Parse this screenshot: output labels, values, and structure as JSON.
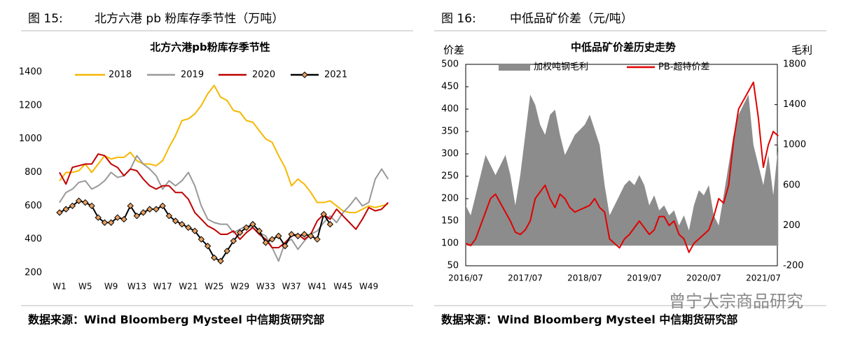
{
  "chart_data": [
    {
      "type": "line",
      "figure_label": "图 15:",
      "caption": "北方六港 pb 粉库存季节性（万吨）",
      "title": "北方六港pb粉库存季节性",
      "source": "数据来源：Wind Bloomberg Mysteel 中信期货研究部",
      "categories": [
        "W1",
        null,
        null,
        null,
        "W5",
        null,
        null,
        null,
        "W9",
        null,
        null,
        null,
        "W13",
        null,
        null,
        null,
        "W17",
        null,
        null,
        null,
        "W21",
        null,
        null,
        null,
        "W25",
        null,
        null,
        null,
        "W29",
        null,
        null,
        null,
        "W33",
        null,
        null,
        null,
        "W37",
        null,
        null,
        null,
        "W41",
        null,
        null,
        null,
        "W45",
        null,
        null,
        null,
        "W49",
        null,
        null,
        null
      ],
      "ylim": [
        200,
        1400
      ],
      "yticks": [
        200,
        400,
        600,
        800,
        1000,
        1200,
        1400
      ],
      "series": [
        {
          "name": "2018",
          "color": "#f5b800",
          "values": [
            750,
            800,
            800,
            810,
            850,
            800,
            850,
            900,
            880,
            890,
            890,
            920,
            870,
            850,
            850,
            840,
            870,
            950,
            1020,
            1110,
            1120,
            1150,
            1200,
            1270,
            1320,
            1250,
            1230,
            1170,
            1160,
            1110,
            1100,
            1050,
            1000,
            980,
            900,
            830,
            720,
            760,
            730,
            680,
            620,
            620,
            630,
            600,
            570,
            560,
            560,
            580,
            600,
            590,
            600,
            610
          ]
        },
        {
          "name": "2019",
          "color": "#999999",
          "values": [
            620,
            680,
            700,
            740,
            750,
            700,
            720,
            750,
            800,
            770,
            780,
            820,
            900,
            850,
            820,
            780,
            700,
            750,
            720,
            750,
            800,
            720,
            600,
            520,
            500,
            490,
            490,
            440,
            460,
            480,
            470,
            440,
            420,
            350,
            270,
            380,
            400,
            340,
            390,
            430,
            450,
            500,
            540,
            500,
            560,
            600,
            650,
            600,
            620,
            760,
            820,
            760
          ]
        },
        {
          "name": "2020",
          "color": "#c00000",
          "values": [
            800,
            730,
            830,
            840,
            850,
            850,
            910,
            900,
            850,
            830,
            780,
            820,
            810,
            760,
            720,
            700,
            720,
            720,
            680,
            680,
            640,
            560,
            520,
            480,
            460,
            430,
            430,
            450,
            400,
            440,
            470,
            430,
            400,
            350,
            350,
            380,
            420,
            430,
            400,
            430,
            510,
            550,
            520,
            580,
            540,
            500,
            460,
            520,
            590,
            570,
            580,
            620
          ]
        },
        {
          "name": "2021",
          "color": "#000000",
          "marker": "diamond",
          "marker_color": "#e8a060",
          "values": [
            560,
            580,
            600,
            630,
            620,
            600,
            530,
            500,
            500,
            530,
            520,
            600,
            540,
            560,
            580,
            580,
            600,
            540,
            510,
            490,
            470,
            450,
            400,
            360,
            290,
            270,
            330,
            390,
            440,
            470,
            490,
            450,
            380,
            400,
            420,
            360,
            430,
            420,
            430,
            420,
            400,
            550,
            490,
            null,
            null,
            null,
            null,
            null,
            null,
            null,
            null,
            null
          ]
        }
      ]
    },
    {
      "type": "line",
      "figure_label": "图 16:",
      "caption": "中低品矿价差（元/吨）",
      "title": "中低品矿价差历史走势",
      "source": "数据来源：Wind Bloomberg Mysteel 中信期货研究部",
      "ylabel": "价差",
      "y2label": "毛利",
      "categories": [
        "2016/07",
        null,
        null,
        null,
        null,
        null,
        null,
        null,
        null,
        null,
        null,
        null,
        "2017/07",
        null,
        null,
        null,
        null,
        null,
        null,
        null,
        null,
        null,
        null,
        null,
        "2018/07",
        null,
        null,
        null,
        null,
        null,
        null,
        null,
        null,
        null,
        null,
        null,
        "2019/07",
        null,
        null,
        null,
        null,
        null,
        null,
        null,
        null,
        null,
        null,
        null,
        "2020/07",
        null,
        null,
        null,
        null,
        null,
        null,
        null,
        null,
        null,
        null,
        null,
        "2021/07",
        null,
        null,
        null
      ],
      "ylim": [
        50,
        500
      ],
      "yticks": [
        50,
        100,
        150,
        200,
        250,
        300,
        350,
        400,
        450,
        500
      ],
      "y2lim": [
        -200,
        1800
      ],
      "y2ticks": [
        -200,
        200,
        600,
        1000,
        1400,
        1800
      ],
      "series": [
        {
          "name": "加权吨钢毛利",
          "type": "area",
          "axis": "y2",
          "color": "#8c8c8c",
          "values": [
            400,
            300,
            500,
            700,
            900,
            800,
            700,
            800,
            900,
            700,
            400,
            700,
            1100,
            1500,
            1400,
            1200,
            1100,
            1300,
            1350,
            1100,
            900,
            1000,
            1100,
            1150,
            1200,
            1300,
            1150,
            1000,
            600,
            300,
            400,
            500,
            600,
            650,
            600,
            700,
            600,
            400,
            500,
            350,
            400,
            300,
            350,
            200,
            300,
            150,
            400,
            550,
            500,
            600,
            300,
            200,
            500,
            800,
            1100,
            1300,
            1400,
            1500,
            1000,
            800,
            600,
            900,
            500,
            1000
          ]
        },
        {
          "name": "PB-超特价差",
          "color": "#e00000",
          "values": [
            100,
            95,
            110,
            140,
            170,
            200,
            210,
            190,
            170,
            150,
            125,
            120,
            130,
            150,
            200,
            215,
            230,
            200,
            180,
            210,
            200,
            180,
            170,
            175,
            180,
            185,
            200,
            180,
            170,
            110,
            100,
            90,
            110,
            120,
            135,
            150,
            135,
            120,
            130,
            160,
            160,
            140,
            150,
            120,
            110,
            80,
            100,
            110,
            120,
            130,
            160,
            200,
            190,
            230,
            330,
            400,
            420,
            440,
            460,
            380,
            270,
            320,
            350,
            340
          ]
        }
      ]
    }
  ],
  "watermark": "曾宁大宗商品研究"
}
